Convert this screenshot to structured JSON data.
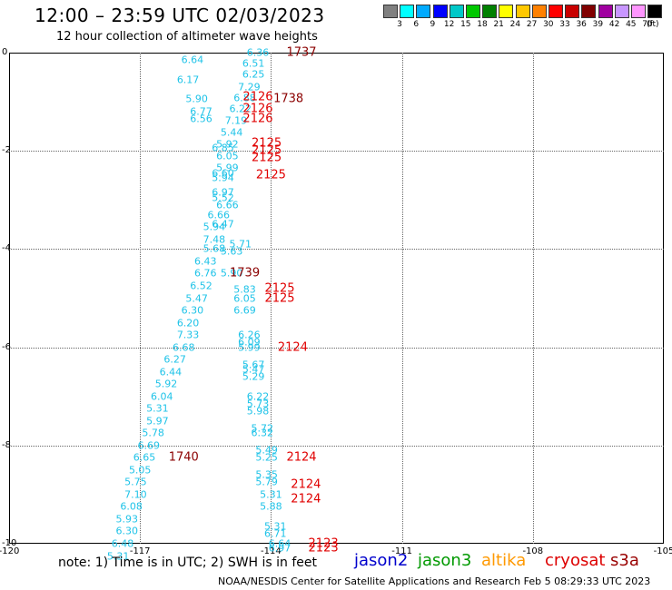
{
  "title": "12:00 – 23:59 UTC 02/03/2023",
  "subtitle": "12 hour collection of altimeter wave heights",
  "note": "note:  1) Time is in UTC; 2) SWH is in feet",
  "credit": "NOAA/NESDIS Center for Satellite Applications and Research   Feb  5 08:29:33 UTC 2023",
  "legend": {
    "units": "(ft)",
    "colors": [
      "#808080",
      "#00ffff",
      "#00aaff",
      "#0000ff",
      "#00c8c8",
      "#00c800",
      "#008000",
      "#ffff00",
      "#ffc800",
      "#ff8000",
      "#ff0000",
      "#c80000",
      "#800000",
      "#a000a0",
      "#c896ff",
      "#ff96ff",
      "#000000"
    ],
    "labels": [
      "3",
      "6",
      "9",
      "12",
      "15",
      "18",
      "21",
      "24",
      "27",
      "30",
      "33",
      "36",
      "39",
      "42",
      "45",
      "70"
    ]
  },
  "satellites": [
    {
      "name": "jason2",
      "color": "#0000cc"
    },
    {
      "name": "jason3",
      "color": "#009900"
    },
    {
      "name": "altika",
      "color": "#ff9900"
    },
    {
      "name": "cryosat",
      "color": "#dd0000"
    },
    {
      "name": "s3a",
      "color": "#990000"
    }
  ],
  "chart_data": {
    "type": "scatter",
    "title": "12:00 – 23:59 UTC 02/03/2023",
    "subtitle": "12 hour collection of altimeter wave heights",
    "xlim": [
      -120,
      -105
    ],
    "ylim": [
      -10,
      0
    ],
    "xticks": [
      "-120",
      "-117",
      "-114",
      "-111",
      "-108",
      "-105"
    ],
    "yticks": [
      "0",
      "-2",
      "-4",
      "-6",
      "-8",
      "-10"
    ],
    "grid": true,
    "swh_ft": [
      {
        "lon": -114.3,
        "lat": 0.0,
        "v": "6.36"
      },
      {
        "lon": -114.4,
        "lat": -0.22,
        "v": "6.51"
      },
      {
        "lon": -114.4,
        "lat": -0.45,
        "v": "6.25"
      },
      {
        "lon": -114.5,
        "lat": -0.7,
        "v": "7.29"
      },
      {
        "lon": -114.6,
        "lat": -0.92,
        "v": "6.88"
      },
      {
        "lon": -114.7,
        "lat": -1.15,
        "v": "6.22"
      },
      {
        "lon": -114.8,
        "lat": -1.38,
        "v": "7.19"
      },
      {
        "lon": -114.9,
        "lat": -1.62,
        "v": "5.44"
      },
      {
        "lon": -115.0,
        "lat": -1.87,
        "v": "5.92"
      },
      {
        "lon": -115.1,
        "lat": -1.95,
        "v": "6.85"
      },
      {
        "lon": -115.0,
        "lat": -2.1,
        "v": "6.05"
      },
      {
        "lon": -115.0,
        "lat": -2.35,
        "v": "5.99"
      },
      {
        "lon": -115.1,
        "lat": -2.45,
        "v": "6.60"
      },
      {
        "lon": -115.1,
        "lat": -2.55,
        "v": "5.94"
      },
      {
        "lon": -115.1,
        "lat": -2.85,
        "v": "6.97"
      },
      {
        "lon": -115.1,
        "lat": -2.95,
        "v": "5.52"
      },
      {
        "lon": -115.0,
        "lat": -3.1,
        "v": "6.66"
      },
      {
        "lon": -115.2,
        "lat": -3.3,
        "v": "6.66"
      },
      {
        "lon": -115.1,
        "lat": -3.5,
        "v": "6.47"
      },
      {
        "lon": -115.3,
        "lat": -3.55,
        "v": "5.94"
      },
      {
        "lon": -115.3,
        "lat": -3.8,
        "v": "7.48"
      },
      {
        "lon": -114.7,
        "lat": -3.9,
        "v": "5.71"
      },
      {
        "lon": -115.3,
        "lat": -4.0,
        "v": "5.68"
      },
      {
        "lon": -114.9,
        "lat": -4.05,
        "v": "5.63"
      },
      {
        "lon": -115.5,
        "lat": -4.25,
        "v": "6.43"
      },
      {
        "lon": -115.5,
        "lat": -4.5,
        "v": "6.76"
      },
      {
        "lon": -114.9,
        "lat": -4.5,
        "v": "5.90"
      },
      {
        "lon": -115.6,
        "lat": -4.75,
        "v": "6.52"
      },
      {
        "lon": -114.6,
        "lat": -4.82,
        "v": "5.83"
      },
      {
        "lon": -115.7,
        "lat": -5.0,
        "v": "5.47"
      },
      {
        "lon": -114.6,
        "lat": -5.0,
        "v": "6.05"
      },
      {
        "lon": -114.6,
        "lat": -5.25,
        "v": "6.69"
      },
      {
        "lon": -115.8,
        "lat": -5.25,
        "v": "6.30"
      },
      {
        "lon": -115.9,
        "lat": -5.5,
        "v": "6.20"
      },
      {
        "lon": -115.9,
        "lat": -5.75,
        "v": "7.33"
      },
      {
        "lon": -114.5,
        "lat": -5.75,
        "v": "6.26"
      },
      {
        "lon": -114.5,
        "lat": -5.9,
        "v": "6.09"
      },
      {
        "lon": -116.0,
        "lat": -6.0,
        "v": "6.68"
      },
      {
        "lon": -114.5,
        "lat": -6.0,
        "v": "5.99"
      },
      {
        "lon": -116.2,
        "lat": -6.25,
        "v": "6.27"
      },
      {
        "lon": -114.4,
        "lat": -6.35,
        "v": "5.67"
      },
      {
        "lon": -114.4,
        "lat": -6.45,
        "v": "5.47"
      },
      {
        "lon": -116.3,
        "lat": -6.5,
        "v": "6.44"
      },
      {
        "lon": -114.4,
        "lat": -6.6,
        "v": "5.29"
      },
      {
        "lon": -116.4,
        "lat": -6.75,
        "v": "5.92"
      },
      {
        "lon": -114.3,
        "lat": -7.0,
        "v": "6.22"
      },
      {
        "lon": -116.5,
        "lat": -7.0,
        "v": "6.04"
      },
      {
        "lon": -114.3,
        "lat": -7.15,
        "v": "5.73"
      },
      {
        "lon": -116.6,
        "lat": -7.25,
        "v": "5.31"
      },
      {
        "lon": -114.3,
        "lat": -7.3,
        "v": "5.98"
      },
      {
        "lon": -116.6,
        "lat": -7.5,
        "v": "5.97"
      },
      {
        "lon": -114.2,
        "lat": -7.65,
        "v": "5.72"
      },
      {
        "lon": -114.2,
        "lat": -7.75,
        "v": "6.32"
      },
      {
        "lon": -116.7,
        "lat": -7.75,
        "v": "5.78"
      },
      {
        "lon": -116.8,
        "lat": -8.0,
        "v": "6.69"
      },
      {
        "lon": -114.1,
        "lat": -8.1,
        "v": "5.49"
      },
      {
        "lon": -116.9,
        "lat": -8.25,
        "v": "6.65"
      },
      {
        "lon": -114.1,
        "lat": -8.25,
        "v": "5.25"
      },
      {
        "lon": -114.1,
        "lat": -8.6,
        "v": "5.35"
      },
      {
        "lon": -117.0,
        "lat": -8.5,
        "v": "5.05"
      },
      {
        "lon": -114.1,
        "lat": -8.75,
        "v": "5.79"
      },
      {
        "lon": -117.1,
        "lat": -8.75,
        "v": "5.75"
      },
      {
        "lon": -117.1,
        "lat": -9.0,
        "v": "7.10"
      },
      {
        "lon": -114.0,
        "lat": -9.0,
        "v": "5.31"
      },
      {
        "lon": -114.0,
        "lat": -9.25,
        "v": "5.88"
      },
      {
        "lon": -117.2,
        "lat": -9.25,
        "v": "6.08"
      },
      {
        "lon": -117.3,
        "lat": -9.5,
        "v": "5.93"
      },
      {
        "lon": -113.9,
        "lat": -9.65,
        "v": "5.31"
      },
      {
        "lon": -117.3,
        "lat": -9.75,
        "v": "6.30"
      },
      {
        "lon": -113.9,
        "lat": -9.8,
        "v": "6.71"
      },
      {
        "lon": -117.4,
        "lat": -10.0,
        "v": "6.48"
      },
      {
        "lon": -113.8,
        "lat": -10.0,
        "v": "6.64"
      },
      {
        "lon": -113.8,
        "lat": -10.1,
        "v": "6.97"
      },
      {
        "lon": -117.5,
        "lat": -10.25,
        "v": "5.31"
      },
      {
        "lon": -115.8,
        "lat": -0.15,
        "v": "6.64"
      },
      {
        "lon": -115.9,
        "lat": -0.55,
        "v": "6.17"
      },
      {
        "lon": -115.7,
        "lat": -0.95,
        "v": "5.90"
      },
      {
        "lon": -115.6,
        "lat": -1.2,
        "v": "6.77"
      },
      {
        "lon": -115.6,
        "lat": -1.35,
        "v": "6.56"
      }
    ],
    "time_labels": [
      {
        "lon": -113.3,
        "lat": 0.0,
        "v": "1737",
        "sat": "s3a"
      },
      {
        "lon": -113.6,
        "lat": -0.95,
        "v": "1738",
        "sat": "s3a"
      },
      {
        "lon": -114.3,
        "lat": -0.9,
        "v": "2126",
        "sat": "cryosat"
      },
      {
        "lon": -114.3,
        "lat": -1.15,
        "v": "2126",
        "sat": "cryosat"
      },
      {
        "lon": -114.3,
        "lat": -1.35,
        "v": "2126",
        "sat": "cryosat"
      },
      {
        "lon": -114.1,
        "lat": -1.85,
        "v": "2125",
        "sat": "cryosat"
      },
      {
        "lon": -114.1,
        "lat": -2.0,
        "v": "2125",
        "sat": "cryosat"
      },
      {
        "lon": -114.1,
        "lat": -2.15,
        "v": "2125",
        "sat": "cryosat"
      },
      {
        "lon": -114.0,
        "lat": -2.5,
        "v": "2125",
        "sat": "cryosat"
      },
      {
        "lon": -114.6,
        "lat": -4.5,
        "v": "1739",
        "sat": "s3a"
      },
      {
        "lon": -113.8,
        "lat": -4.8,
        "v": "2125",
        "sat": "cryosat"
      },
      {
        "lon": -113.8,
        "lat": -5.0,
        "v": "2125",
        "sat": "cryosat"
      },
      {
        "lon": -113.5,
        "lat": -6.0,
        "v": "2124",
        "sat": "cryosat"
      },
      {
        "lon": -116.0,
        "lat": -8.25,
        "v": "1740",
        "sat": "s3a"
      },
      {
        "lon": -113.3,
        "lat": -8.25,
        "v": "2124",
        "sat": "cryosat"
      },
      {
        "lon": -113.2,
        "lat": -8.8,
        "v": "2124",
        "sat": "cryosat"
      },
      {
        "lon": -113.2,
        "lat": -9.1,
        "v": "2124",
        "sat": "cryosat"
      },
      {
        "lon": -112.8,
        "lat": -10.0,
        "v": "2123",
        "sat": "cryosat"
      },
      {
        "lon": -112.8,
        "lat": -10.1,
        "v": "2123",
        "sat": "cryosat"
      }
    ]
  }
}
